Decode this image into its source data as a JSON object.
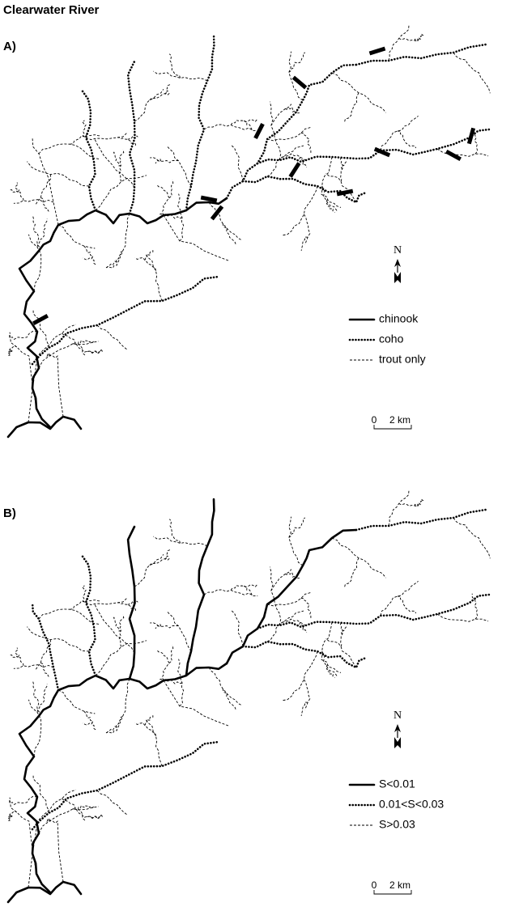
{
  "title": "Clearwater River",
  "panels": [
    {
      "label": "A)",
      "legend": [
        "chinook",
        "coho",
        "trout only"
      ],
      "north": "N",
      "scale": {
        "zero": "0",
        "distance": "2 km"
      }
    },
    {
      "label": "B)",
      "legend": [
        "S<0.01",
        "0.01<S<0.03",
        "S>0.03"
      ],
      "north": "N",
      "scale": {
        "zero": "0",
        "distance": "2 km"
      }
    }
  ]
}
